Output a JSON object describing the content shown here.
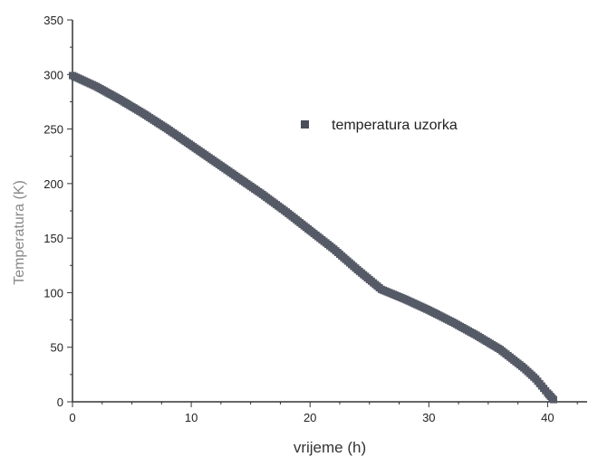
{
  "chart_data": {
    "type": "scatter",
    "title": "",
    "xlabel": "vrijeme (h)",
    "ylabel": "Temperatura (K)",
    "xlim": [
      0,
      45
    ],
    "ylim": [
      0,
      350
    ],
    "xticks": [
      0,
      10,
      20,
      30,
      40
    ],
    "yticks": [
      0,
      50,
      100,
      150,
      200,
      250,
      300,
      350
    ],
    "grid": false,
    "legend_position": "top-right",
    "series": [
      {
        "name": "temperatura uzorka",
        "color": "#555a66",
        "marker": "square",
        "points": [
          [
            0,
            299
          ],
          [
            2,
            289
          ],
          [
            4,
            277
          ],
          [
            6,
            264
          ],
          [
            8,
            250
          ],
          [
            10,
            235
          ],
          [
            12,
            220
          ],
          [
            14,
            205
          ],
          [
            16,
            190
          ],
          [
            18,
            174
          ],
          [
            20,
            157
          ],
          [
            22,
            140
          ],
          [
            24,
            121
          ],
          [
            26,
            103
          ],
          [
            28,
            94
          ],
          [
            30,
            84
          ],
          [
            32,
            73
          ],
          [
            34,
            61
          ],
          [
            36,
            48
          ],
          [
            38,
            31
          ],
          [
            39,
            21
          ],
          [
            40,
            8
          ],
          [
            40.5,
            2
          ]
        ]
      }
    ]
  }
}
